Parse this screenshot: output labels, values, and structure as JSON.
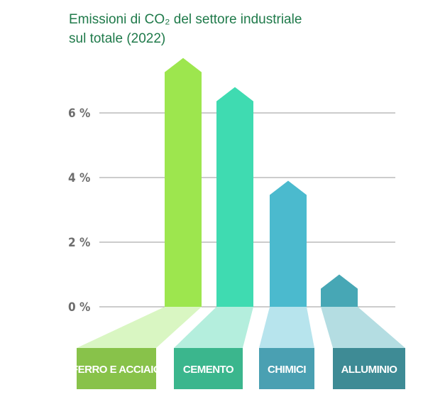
{
  "chart_data": {
    "type": "arrow-bar",
    "title": [
      "Emissioni di CO₂ del settore industriale",
      "sul totale  (2022)"
    ],
    "categories": [
      "FERRO E ACCIAIO",
      "CEMENTO",
      "CHIMICI",
      "ALLUMINIO"
    ],
    "values": [
      7.7,
      6.8,
      3.9,
      1.0
    ],
    "colors": [
      "#9de64e",
      "#3fdbb1",
      "#4bbace",
      "#47a7b5"
    ],
    "ylim": [
      0,
      8
    ],
    "yticks": [
      {
        "value": 0,
        "label": "0 %"
      },
      {
        "value": 2,
        "label": "2 %"
      },
      {
        "value": 4,
        "label": "4 %"
      },
      {
        "value": 6,
        "label": "6 %"
      }
    ],
    "grid": true
  }
}
